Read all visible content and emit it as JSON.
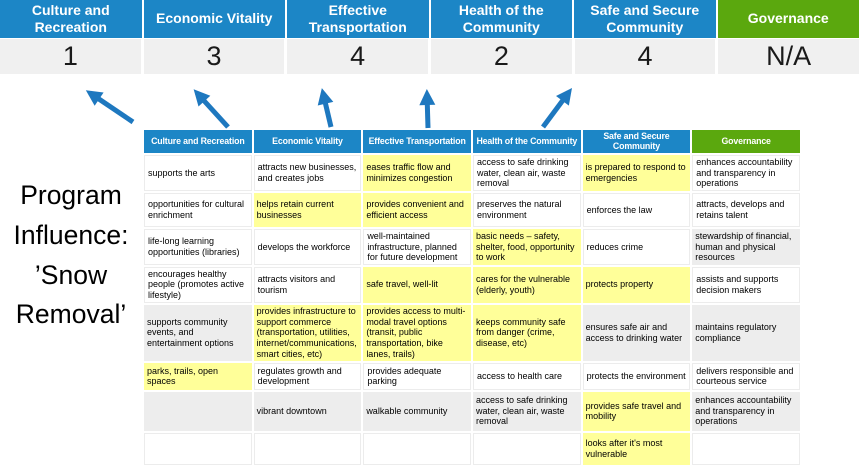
{
  "program_label": "Program Influence: ’Snow Removal’",
  "colors": {
    "header_blue": "#1C86C6",
    "governance_green": "#5BA80E",
    "arrow_blue": "#1E78BF",
    "highlight_yellow": "#FFFF99",
    "band_gray": "#EDEDED",
    "score_row_gray": "#F0F0F0"
  },
  "scoreboard": {
    "columns": [
      {
        "label": "Culture and Recreation",
        "score": "1",
        "header_color": "#1C86C6"
      },
      {
        "label": "Economic Vitality",
        "score": "3",
        "header_color": "#1C86C6"
      },
      {
        "label": "Effective Transportation",
        "score": "4",
        "header_color": "#1C86C6"
      },
      {
        "label": "Health of the Community",
        "score": "2",
        "header_color": "#1C86C6"
      },
      {
        "label": "Safe and Secure Community",
        "score": "4",
        "header_color": "#1C86C6"
      },
      {
        "label": "Governance",
        "score": "N/A",
        "header_color": "#5BA80E"
      }
    ]
  },
  "matrix": {
    "headers": [
      {
        "label": "Culture and Recreation",
        "color": "#1C86C6"
      },
      {
        "label": "Economic Vitality",
        "color": "#1C86C6"
      },
      {
        "label": "Effective Transportation",
        "color": "#1C86C6"
      },
      {
        "label": "Health of the Community",
        "color": "#1C86C6"
      },
      {
        "label": "Safe and Secure Community",
        "color": "#1C86C6"
      },
      {
        "label": "Governance",
        "color": "#5BA80E"
      }
    ],
    "rows": [
      {
        "cells": [
          {
            "t": "supports the arts",
            "bg": "white"
          },
          {
            "t": "attracts new businesses, and creates jobs",
            "bg": "white"
          },
          {
            "t": "eases traffic flow and minimizes congestion",
            "bg": "yellow"
          },
          {
            "t": "access to safe drinking water, clean air, waste removal",
            "bg": "white"
          },
          {
            "t": "is prepared to respond to emergencies",
            "bg": "yellow"
          },
          {
            "t": "enhances accountability and transparency in operations",
            "bg": "white"
          }
        ]
      },
      {
        "cells": [
          {
            "t": "opportunities for cultural enrichment",
            "bg": "white"
          },
          {
            "t": "helps retain current businesses",
            "bg": "yellow"
          },
          {
            "t": "provides convenient and efficient access",
            "bg": "yellow"
          },
          {
            "t": "preserves the natural environment",
            "bg": "white"
          },
          {
            "t": "enforces the law",
            "bg": "white"
          },
          {
            "t": "attracts, develops and retains talent",
            "bg": "white"
          }
        ]
      },
      {
        "cells": [
          {
            "t": "life-long learning opportunities (libraries)",
            "bg": "white"
          },
          {
            "t": "develops the workforce",
            "bg": "white"
          },
          {
            "t": "well-maintained infrastructure, planned for future development",
            "bg": "white"
          },
          {
            "t": "basic needs – safety, shelter, food, opportunity to work",
            "bg": "yellow"
          },
          {
            "t": "reduces crime",
            "bg": "white"
          },
          {
            "t": "stewardship of financial, human and physical resources",
            "bg": "gray"
          }
        ]
      },
      {
        "cells": [
          {
            "t": "encourages healthy people (promotes active lifestyle)",
            "bg": "white"
          },
          {
            "t": "attracts visitors and tourism",
            "bg": "white"
          },
          {
            "t": "safe travel, well-lit",
            "bg": "yellow"
          },
          {
            "t": "cares for the vulnerable (elderly, youth)",
            "bg": "yellow"
          },
          {
            "t": "protects property",
            "bg": "yellow"
          },
          {
            "t": "assists and supports decision makers",
            "bg": "white"
          }
        ]
      },
      {
        "cells": [
          {
            "t": "supports community events, and entertainment options",
            "bg": "gray"
          },
          {
            "t": "provides infrastructure to support commerce (transportation, utilities, internet/communications, smart cities, etc)",
            "bg": "yellow"
          },
          {
            "t": "provides access to multi-modal travel options (transit, public transportation, bike lanes, trails)",
            "bg": "yellow"
          },
          {
            "t": "keeps community safe from danger (crime, disease, etc)",
            "bg": "yellow"
          },
          {
            "t": "ensures safe air and access to drinking water",
            "bg": "gray"
          },
          {
            "t": "maintains regulatory compliance",
            "bg": "gray"
          }
        ]
      },
      {
        "cells": [
          {
            "t": "parks, trails, open spaces",
            "bg": "yellow"
          },
          {
            "t": "regulates growth and development",
            "bg": "white"
          },
          {
            "t": "provides adequate parking",
            "bg": "white"
          },
          {
            "t": "access to health care",
            "bg": "white"
          },
          {
            "t": "protects the environment",
            "bg": "white"
          },
          {
            "t": "delivers responsible and courteous service",
            "bg": "white"
          }
        ]
      },
      {
        "cells": [
          {
            "t": "",
            "bg": "gray"
          },
          {
            "t": "vibrant downtown",
            "bg": "gray"
          },
          {
            "t": "walkable community",
            "bg": "gray"
          },
          {
            "t": "access to safe drinking water, clean air, waste removal",
            "bg": "gray"
          },
          {
            "t": "provides safe travel and mobility",
            "bg": "yellow"
          },
          {
            "t": "enhances accountability and transparency in operations",
            "bg": "gray"
          }
        ]
      },
      {
        "cells": [
          {
            "t": "",
            "bg": "white"
          },
          {
            "t": "",
            "bg": "white"
          },
          {
            "t": "",
            "bg": "white"
          },
          {
            "t": "",
            "bg": "white"
          },
          {
            "t": "looks after it's most vulnerable",
            "bg": "yellow"
          },
          {
            "t": "",
            "bg": "white"
          }
        ]
      }
    ]
  }
}
